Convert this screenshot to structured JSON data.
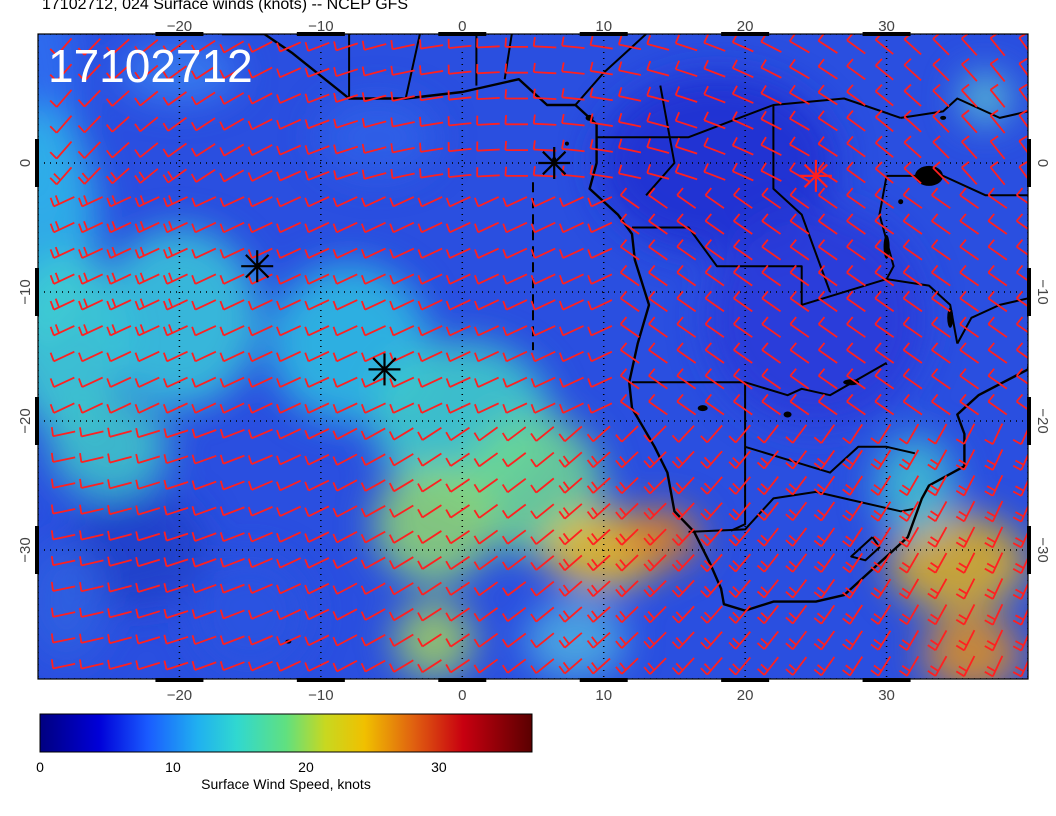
{
  "title": "17102712, 024 Surface winds (knots) -- NCEP GFS",
  "stamp": "17102712",
  "axes": {
    "lon_ticks": [
      "−20",
      "−10",
      "0",
      "10",
      "20",
      "30"
    ],
    "lon_values": [
      -20,
      -10,
      0,
      10,
      20,
      30
    ],
    "lat_ticks": [
      "0",
      "−10",
      "−20",
      "−30"
    ],
    "lat_values": [
      0,
      -10,
      -20,
      -30
    ],
    "lon_range": [
      -30,
      40
    ],
    "lat_range": [
      -40,
      10
    ]
  },
  "colorbar": {
    "label": "Surface Wind Speed, knots",
    "ticks": [
      "0",
      "10",
      "20",
      "30"
    ],
    "tick_values": [
      0,
      10,
      20,
      30
    ],
    "range": [
      0,
      37
    ]
  },
  "markers": [
    {
      "name": "storm-marker-1",
      "lon": -14.5,
      "lat": -8,
      "color": "#000000"
    },
    {
      "name": "storm-marker-2",
      "lon": -5.5,
      "lat": -16,
      "color": "#000000"
    },
    {
      "name": "storm-marker-3",
      "lon": 6.5,
      "lat": 0,
      "color": "#000000"
    },
    {
      "name": "storm-marker-4",
      "lon": 25,
      "lat": -1,
      "color": "#ff2020"
    }
  ],
  "colors": {
    "barb": "#ff2020",
    "coast": "#000000",
    "grid": "#000000"
  }
}
